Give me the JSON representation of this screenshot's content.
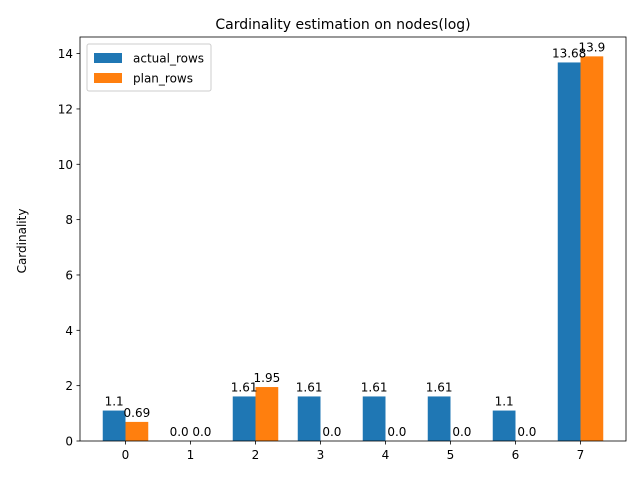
{
  "chart_data": {
    "type": "bar",
    "title": "Cardinality estimation on nodes(log)",
    "xlabel": "",
    "ylabel": "Cardinality",
    "categories": [
      "0",
      "1",
      "2",
      "3",
      "4",
      "5",
      "6",
      "7"
    ],
    "ylim": [
      0,
      14.6
    ],
    "yticks": [
      0,
      2,
      4,
      6,
      8,
      10,
      12,
      14
    ],
    "grid": false,
    "legend_position": "top-left",
    "series": [
      {
        "name": "actual_rows",
        "color": "#1f77b4",
        "values": [
          1.1,
          0.0,
          1.61,
          1.61,
          1.61,
          1.61,
          1.1,
          13.68
        ],
        "labels": [
          "1.1",
          "0.0",
          "1.61",
          "1.61",
          "1.61",
          "1.61",
          "1.1",
          "13.68"
        ]
      },
      {
        "name": "plan_rows",
        "color": "#ff7f0e",
        "values": [
          0.69,
          0.0,
          1.95,
          0.0,
          0.0,
          0.0,
          0.0,
          13.9
        ],
        "labels": [
          "0.69",
          "0.0",
          "1.95",
          "0.0",
          "0.0",
          "0.0",
          "0.0",
          "13.9"
        ]
      }
    ]
  }
}
